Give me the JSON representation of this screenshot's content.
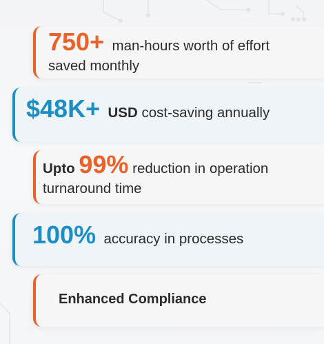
{
  "stats": [
    {
      "value": "750+",
      "text_line1": "man-hours worth of effort",
      "text_line2": "saved monthly"
    },
    {
      "value": "$48K+",
      "unit": "USD",
      "text": "cost-saving annually"
    },
    {
      "prefix": "Upto",
      "value": "99%",
      "text_line1": "reduction in operation",
      "text_line2": "turnaround time"
    },
    {
      "value": "100%",
      "text": "accuracy in processes"
    },
    {
      "text": "Enhanced Compliance"
    }
  ],
  "colors": {
    "orange_accent": "#e9622b",
    "blue_accent": "#1b8ec6",
    "text": "#2b2b2b"
  }
}
